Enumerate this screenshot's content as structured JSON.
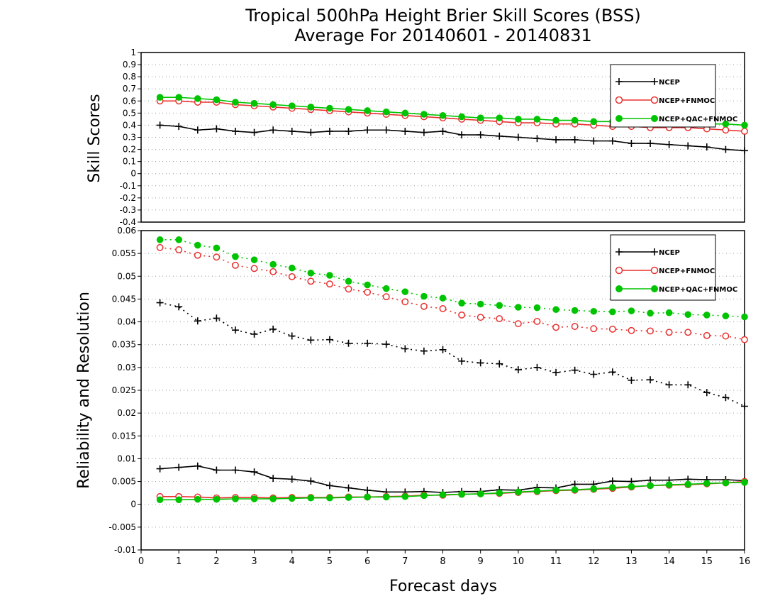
{
  "title": {
    "line1": "Tropical 500hPa Height Brier Skill Scores (BSS)",
    "line2": "Average For 20140601 - 20140831"
  },
  "colors": {
    "ncep": "#000000",
    "fnmoc": "#e8312f",
    "qc": "#00c400"
  },
  "chart_data": [
    {
      "type": "line",
      "ylabel": "Skill Scores",
      "xlim": [
        0,
        16
      ],
      "ylim": [
        -0.4,
        1
      ],
      "yticks": [
        "1",
        "0.9",
        "0.8",
        "0.7",
        "0.6",
        "0.5",
        "0.4",
        "0.3",
        "0.2",
        "0.1",
        "0",
        "-0.1",
        "-0.2",
        "-0.3",
        "-0.4"
      ],
      "grid": "horizontal dotted",
      "legend_position": "top-right",
      "x": [
        0.5,
        1,
        1.5,
        2,
        2.5,
        3,
        3.5,
        4,
        4.5,
        5,
        5.5,
        6,
        6.5,
        7,
        7.5,
        8,
        8.5,
        9,
        9.5,
        10,
        10.5,
        11,
        11.5,
        12,
        12.5,
        13,
        13.5,
        14,
        14.5,
        15,
        15.5,
        16
      ],
      "series": [
        {
          "name": "NCEP",
          "color": "#000000",
          "marker": "plus",
          "dash": "solid",
          "values": [
            0.4,
            0.39,
            0.36,
            0.37,
            0.35,
            0.34,
            0.36,
            0.35,
            0.34,
            0.35,
            0.35,
            0.36,
            0.36,
            0.35,
            0.34,
            0.35,
            0.32,
            0.32,
            0.31,
            0.3,
            0.29,
            0.28,
            0.28,
            0.27,
            0.27,
            0.25,
            0.25,
            0.24,
            0.23,
            0.22,
            0.2,
            0.19
          ]
        },
        {
          "name": "NCEP+FNMOC",
          "color": "#e8312f",
          "marker": "open-circle",
          "dash": "solid",
          "values": [
            0.6,
            0.6,
            0.59,
            0.59,
            0.57,
            0.56,
            0.55,
            0.54,
            0.53,
            0.52,
            0.51,
            0.5,
            0.49,
            0.48,
            0.47,
            0.46,
            0.45,
            0.44,
            0.43,
            0.42,
            0.42,
            0.41,
            0.41,
            0.4,
            0.39,
            0.39,
            0.38,
            0.38,
            0.38,
            0.37,
            0.36,
            0.35
          ]
        },
        {
          "name": "NCEP+QAC+FNMOC",
          "color": "#00c400",
          "marker": "filled-circle",
          "dash": "solid",
          "values": [
            0.63,
            0.63,
            0.62,
            0.61,
            0.59,
            0.58,
            0.57,
            0.56,
            0.55,
            0.54,
            0.53,
            0.52,
            0.51,
            0.5,
            0.49,
            0.48,
            0.47,
            0.46,
            0.46,
            0.45,
            0.45,
            0.44,
            0.44,
            0.43,
            0.43,
            0.42,
            0.42,
            0.42,
            0.41,
            0.41,
            0.41,
            0.4
          ]
        }
      ]
    },
    {
      "type": "line",
      "ylabel": "Reliability and Resolution",
      "xlabel": "Forecast days",
      "xlim": [
        0,
        16
      ],
      "ylim": [
        -0.01,
        0.06
      ],
      "xticks": [
        "0",
        "1",
        "2",
        "3",
        "4",
        "5",
        "6",
        "7",
        "8",
        "9",
        "10",
        "11",
        "12",
        "13",
        "14",
        "15",
        "16"
      ],
      "yticks": [
        "0.06",
        "0.055",
        "0.05",
        "0.045",
        "0.04",
        "0.035",
        "0.03",
        "0.025",
        "0.02",
        "0.015",
        "0.01",
        "0.005",
        "0",
        "-0.005",
        "-0.01"
      ],
      "grid": "horizontal dotted",
      "legend_position": "top-right",
      "x": [
        0.5,
        1,
        1.5,
        2,
        2.5,
        3,
        3.5,
        4,
        4.5,
        5,
        5.5,
        6,
        6.5,
        7,
        7.5,
        8,
        8.5,
        9,
        9.5,
        10,
        10.5,
        11,
        11.5,
        12,
        12.5,
        13,
        13.5,
        14,
        14.5,
        15,
        15.5,
        16
      ],
      "series": [
        {
          "name": "NCEP",
          "color": "#000000",
          "marker": "plus",
          "dash": "dotted",
          "values": [
            0.0442,
            0.0433,
            0.0402,
            0.0408,
            0.0382,
            0.0373,
            0.0384,
            0.0369,
            0.036,
            0.0361,
            0.0353,
            0.0353,
            0.0351,
            0.0341,
            0.0336,
            0.0339,
            0.0314,
            0.031,
            0.0308,
            0.0295,
            0.03,
            0.0289,
            0.0294,
            0.0285,
            0.029,
            0.0272,
            0.0273,
            0.0262,
            0.0262,
            0.0245,
            0.0234,
            0.0215
          ]
        },
        {
          "name": "NCEP+FNMOC",
          "color": "#e8312f",
          "marker": "open-circle",
          "dash": "dotted",
          "values": [
            0.0563,
            0.0558,
            0.0546,
            0.0542,
            0.0524,
            0.0517,
            0.051,
            0.0499,
            0.0489,
            0.0483,
            0.0472,
            0.0465,
            0.0455,
            0.0444,
            0.0434,
            0.0429,
            0.0415,
            0.041,
            0.0407,
            0.0396,
            0.0401,
            0.0388,
            0.039,
            0.0385,
            0.0384,
            0.0381,
            0.038,
            0.0377,
            0.0377,
            0.037,
            0.0369,
            0.0361
          ]
        },
        {
          "name": "NCEP+QAC+FNMOC",
          "color": "#00c400",
          "marker": "filled-circle",
          "dash": "dotted",
          "values": [
            0.058,
            0.058,
            0.0568,
            0.0562,
            0.0543,
            0.0536,
            0.0526,
            0.0518,
            0.0507,
            0.0502,
            0.0489,
            0.0481,
            0.0473,
            0.0466,
            0.0456,
            0.0452,
            0.0441,
            0.0439,
            0.0436,
            0.0432,
            0.0431,
            0.0427,
            0.0425,
            0.0423,
            0.0422,
            0.0424,
            0.0419,
            0.042,
            0.0416,
            0.0415,
            0.0413,
            0.0411
          ]
        },
        {
          "name": "",
          "color": "#000000",
          "marker": "plus",
          "dash": "solid",
          "values": [
            0.0078,
            0.0081,
            0.0084,
            0.0075,
            0.0075,
            0.0071,
            0.0057,
            0.0055,
            0.0051,
            0.0041,
            0.0036,
            0.0031,
            0.0027,
            0.0027,
            0.0028,
            0.0026,
            0.0028,
            0.0028,
            0.0032,
            0.0031,
            0.0037,
            0.0036,
            0.0044,
            0.0044,
            0.0051,
            0.005,
            0.0053,
            0.0053,
            0.0055,
            0.0054,
            0.0054,
            0.0052
          ]
        },
        {
          "name": "",
          "color": "#e8312f",
          "marker": "open-circle",
          "dash": "solid",
          "values": [
            0.0017,
            0.0017,
            0.0016,
            0.0014,
            0.0015,
            0.0015,
            0.0014,
            0.0015,
            0.0015,
            0.0015,
            0.0016,
            0.0016,
            0.0017,
            0.0018,
            0.002,
            0.002,
            0.0022,
            0.0023,
            0.0024,
            0.0026,
            0.0028,
            0.003,
            0.0031,
            0.0033,
            0.0035,
            0.0038,
            0.0041,
            0.0042,
            0.0043,
            0.0045,
            0.0047,
            0.005
          ]
        },
        {
          "name": "",
          "color": "#00c400",
          "marker": "filled-circle",
          "dash": "solid",
          "values": [
            0.001,
            0.001,
            0.0011,
            0.0011,
            0.0012,
            0.0012,
            0.0012,
            0.0013,
            0.0014,
            0.0014,
            0.0015,
            0.0016,
            0.0016,
            0.0017,
            0.0019,
            0.0021,
            0.0022,
            0.0023,
            0.0025,
            0.0027,
            0.0029,
            0.0031,
            0.0032,
            0.0034,
            0.0037,
            0.0039,
            0.0041,
            0.0043,
            0.0044,
            0.0046,
            0.0047,
            0.0048
          ]
        }
      ]
    }
  ]
}
